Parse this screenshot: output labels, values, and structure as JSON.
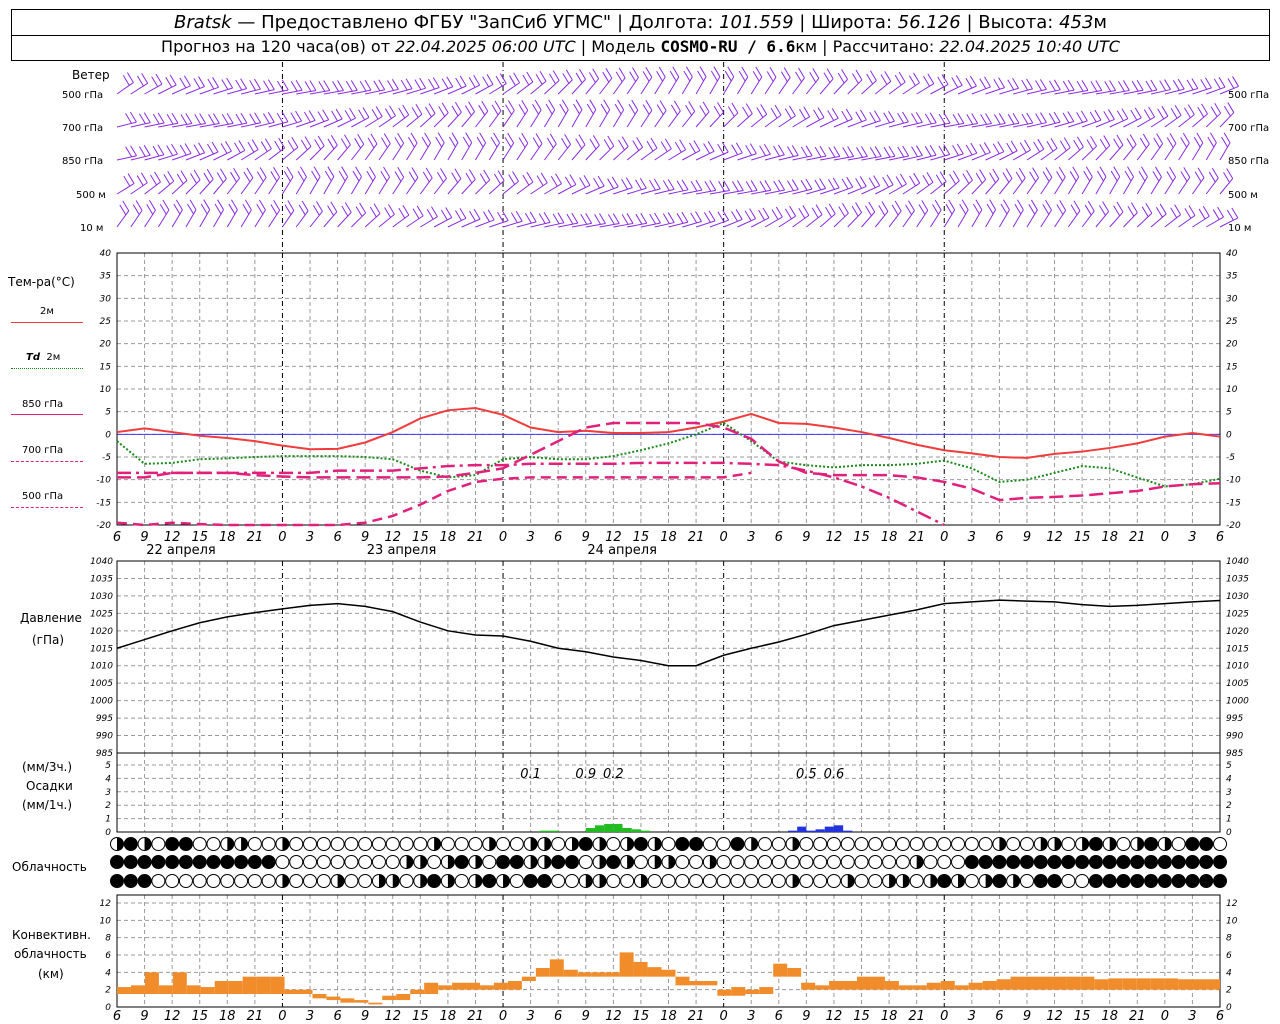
{
  "header": {
    "station": "Bratsk",
    "provided": "— Предоставлено ФГБУ \"ЗапСиб УГМС\"",
    "lon_label": "Долгота:",
    "lon": "101.559",
    "lat_label": "Широта:",
    "lat": "56.126",
    "alt_label": "Высота:",
    "alt": "453",
    "alt_unit": "м",
    "forecast_text": "Прогноз на 120 часа(ов) от",
    "forecast_from": "22.04.2025 06:00 UTC",
    "model_label": "Модель",
    "model": "COSMO-RU / 6.6",
    "model_unit": "км",
    "calc_label": "Рассчитано:",
    "calc_time": "22.04.2025 10:40 UTC"
  },
  "wind_panel": {
    "title": "Ветер",
    "levels": [
      "500 гПа",
      "700 гПа",
      "850 гПа",
      "500 м",
      "10  м"
    ]
  },
  "temp_panel": {
    "title": "Тем-ра(°C)",
    "legend": [
      {
        "label": "2м",
        "color": "#f03c3c",
        "style": "solid"
      },
      {
        "label_italic": "Td",
        "label": "2м",
        "color": "#1a8a1a",
        "style": "dotted"
      },
      {
        "label": "850 гПа",
        "color": "#e0207a",
        "style": "solid"
      },
      {
        "label": "700 гПа",
        "color": "#e0207a",
        "style": "dashdot"
      },
      {
        "label": "500 гПа",
        "color": "#e0207a",
        "style": "dashed"
      }
    ]
  },
  "pressure_panel": {
    "title": "Давление",
    "unit": "(гПа)"
  },
  "precip_panel": {
    "unit3": "(мм/3ч.)",
    "title": "Осадки",
    "unit1": "(мм/1ч.)"
  },
  "cloud_panel": {
    "title": "Облачность"
  },
  "conv_panel": {
    "title1": "Конвективн.",
    "title2": "облачность",
    "unit": "(км)"
  },
  "x_axis": {
    "hour_labels": [
      "6",
      "9",
      "12",
      "15",
      "18",
      "21",
      "0",
      "3",
      "6",
      "9",
      "12",
      "15",
      "18",
      "21",
      "0",
      "3",
      "6",
      "9",
      "12",
      "15",
      "18",
      "21",
      "0",
      "3",
      "6",
      "9",
      "12"
    ],
    "days": [
      "22 апреля",
      "23 апреля",
      "24 апреля"
    ]
  },
  "colors": {
    "wind": "#8a2be2",
    "t2m": "#f03c3c",
    "td": "#1a8a1a",
    "upper": "#e0207a",
    "pressure": "#000000",
    "precip_rain": "#22bb22",
    "precip_snow": "#2233dd",
    "conv": "#f08c2a",
    "grid": "#999999"
  },
  "chart_data": [
    {
      "type": "line",
      "title": "Тем-ра(°C)",
      "ylim": [
        -20,
        40
      ],
      "x_hours_from_start": [
        0,
        3,
        6,
        9,
        12,
        15,
        18,
        21,
        24,
        27,
        30,
        33,
        36,
        39,
        42,
        45,
        48,
        51,
        54,
        57,
        60,
        63,
        66,
        69,
        72,
        75,
        78,
        81,
        84,
        87,
        90,
        93,
        96,
        99,
        102,
        105,
        108,
        111,
        114,
        117,
        120
      ],
      "series": [
        {
          "name": "2м",
          "values": [
            0.5,
            1.3,
            0.5,
            -0.3,
            -0.8,
            -1.5,
            -2.5,
            -3.3,
            -3.2,
            -1.8,
            0.5,
            3.5,
            5.3,
            5.8,
            4.3,
            1.5,
            0.5,
            0.8,
            0.3,
            0.3,
            0.5,
            1.5,
            2.8,
            4.5,
            2.5,
            2.3,
            1.5,
            0.5,
            -0.8,
            -2.3,
            -3.5,
            -4.2,
            -5.0,
            -5.2,
            -4.3,
            -3.8,
            -3.0,
            -2.0,
            -0.5,
            0.3,
            -0.5
          ]
        },
        {
          "name": "Td 2м",
          "values": [
            -1.5,
            -6.5,
            -6.3,
            -5.5,
            -5.3,
            -5.0,
            -4.8,
            -4.8,
            -4.8,
            -5.0,
            -5.5,
            -8.0,
            -9.5,
            -9.0,
            -5.5,
            -5.0,
            -5.5,
            -5.5,
            -4.8,
            -3.5,
            -2.0,
            0.0,
            2.5,
            -1.5,
            -6.0,
            -6.8,
            -7.3,
            -6.8,
            -6.8,
            -6.5,
            -5.8,
            -7.5,
            -10.5,
            -10.0,
            -8.5,
            -7.0,
            -7.5,
            -9.5,
            -11.5,
            -11.0,
            -9.8
          ]
        },
        {
          "name": "850 гПа",
          "values": [
            -9.5,
            -9.5,
            -8.5,
            -8.5,
            -8.5,
            -9.0,
            -9.3,
            -9.5,
            -9.5,
            -9.5,
            -9.5,
            -9.5,
            -9.3,
            -8.5,
            -7.5,
            -4.5,
            -1.5,
            1.5,
            2.5,
            2.5,
            2.5,
            2.5,
            1.5,
            -1.0,
            -6.0,
            -8.5,
            -9.0,
            -9.0,
            -9.0,
            -9.5,
            -10.5,
            -12.0,
            -14.5,
            -14.0,
            -13.8,
            -13.5,
            -13.0,
            -12.5,
            -11.5,
            -11.0,
            -10.8
          ]
        },
        {
          "name": "700 гПа",
          "values": [
            -8.5,
            -8.5,
            -8.5,
            -8.5,
            -8.5,
            -8.5,
            -8.5,
            -8.5,
            -8.0,
            -8.0,
            -8.0,
            -7.5,
            -7.0,
            -6.8,
            -6.8,
            -6.5,
            -6.5,
            -6.5,
            -6.5,
            -6.3,
            -6.3,
            -6.3,
            -6.3,
            -6.5,
            -6.8,
            -8.0,
            -9.5,
            -11.5,
            -14.0,
            -17.0,
            -20.0
          ]
        },
        {
          "name": "500 гПа",
          "values": [
            -19.5,
            -20.0,
            -19.5,
            -19.8,
            -20.0,
            -20.3,
            -20.5,
            -20.3,
            -20.0,
            -19.5,
            -18.0,
            -15.5,
            -12.5,
            -10.5,
            -9.8,
            -9.5,
            -9.5,
            -9.5,
            -9.5,
            -9.5,
            -9.5,
            -9.5,
            -9.5,
            -8.5
          ]
        }
      ]
    },
    {
      "type": "line",
      "title": "Давление",
      "ylim": [
        985,
        1040
      ],
      "x_hours_from_start": [
        0,
        3,
        6,
        9,
        12,
        15,
        18,
        21,
        24,
        27,
        30,
        33,
        36,
        39,
        42,
        45,
        48,
        51,
        54,
        57,
        60,
        63,
        66,
        69,
        72,
        75,
        78,
        81,
        84,
        87,
        90,
        93,
        96,
        99,
        102,
        105,
        108,
        111,
        114,
        117,
        120
      ],
      "series": [
        {
          "name": "Давление",
          "values": [
            1015.0,
            1017.5,
            1020.0,
            1022.3,
            1024.0,
            1025.2,
            1026.3,
            1027.3,
            1027.8,
            1027.0,
            1025.5,
            1022.5,
            1020.0,
            1018.8,
            1018.5,
            1017.0,
            1015.0,
            1014.0,
            1012.5,
            1011.5,
            1010.0,
            1010.0,
            1013.0,
            1015.0,
            1016.8,
            1019.0,
            1021.5,
            1023.0,
            1024.5,
            1026.0,
            1027.8,
            1028.3,
            1028.8,
            1028.5,
            1028.3,
            1027.5,
            1027.0,
            1027.3,
            1027.8,
            1028.3,
            1028.7
          ]
        }
      ]
    },
    {
      "type": "bar",
      "title": "Осадки",
      "ylim": [
        0,
        5
      ],
      "annotations": [
        {
          "x_hour": 45,
          "text": "0.1"
        },
        {
          "x_hour": 51,
          "text": "0.9"
        },
        {
          "x_hour": 54,
          "text": "0.2"
        },
        {
          "x_hour": 75,
          "text": "0.5"
        },
        {
          "x_hour": 78,
          "text": "0.6"
        }
      ],
      "series": [
        {
          "name": "rain",
          "x_hour": [
            46,
            47,
            51,
            52,
            53,
            54,
            55,
            56,
            57
          ],
          "values": [
            0.1,
            0.1,
            0.3,
            0.5,
            0.6,
            0.6,
            0.3,
            0.2,
            0.1
          ]
        },
        {
          "name": "snow",
          "x_hour": [
            73,
            74,
            75,
            76,
            77,
            78,
            79
          ],
          "values": [
            0.1,
            0.4,
            0.1,
            0.2,
            0.4,
            0.5,
            0.1
          ]
        }
      ]
    },
    {
      "type": "bar",
      "title": "Конвективн. облачность",
      "ylim": [
        0,
        12
      ],
      "bars_base_top_km": [
        [
          0,
          1.5,
          2.3
        ],
        [
          1,
          1.5,
          2.5
        ],
        [
          2,
          1.5,
          4
        ],
        [
          3,
          1.5,
          2.5
        ],
        [
          4,
          1.5,
          4
        ],
        [
          5,
          1.5,
          2.5
        ],
        [
          6,
          1.5,
          2.3
        ],
        [
          7,
          1.5,
          3
        ],
        [
          8,
          1.5,
          3
        ],
        [
          9,
          1.5,
          3.5
        ],
        [
          10,
          1.5,
          3.5
        ],
        [
          11,
          1.5,
          3.5
        ],
        [
          12,
          1.5,
          2
        ],
        [
          13,
          1.5,
          2
        ],
        [
          14,
          1.0,
          1.5
        ],
        [
          15,
          0.8,
          1.2
        ],
        [
          16,
          0.5,
          1.0
        ],
        [
          17,
          0.5,
          0.8
        ],
        [
          18,
          0.3,
          0.5
        ],
        [
          19,
          0.8,
          1.3
        ],
        [
          20,
          0.8,
          1.5
        ],
        [
          21,
          1.5,
          2
        ],
        [
          22,
          1.5,
          2.8
        ],
        [
          23,
          2,
          2.5
        ],
        [
          24,
          2,
          2.8
        ],
        [
          25,
          2,
          2.8
        ],
        [
          26,
          2,
          2.5
        ],
        [
          27,
          2,
          2.8
        ],
        [
          28,
          2,
          3
        ],
        [
          29,
          3,
          3.5
        ],
        [
          30,
          3.5,
          4.5
        ],
        [
          31,
          3.5,
          5.5
        ],
        [
          32,
          3.5,
          4.3
        ],
        [
          33,
          3.5,
          4
        ],
        [
          34,
          3.5,
          4
        ],
        [
          35,
          3.5,
          4
        ],
        [
          36,
          3.5,
          6.3
        ],
        [
          37,
          3.5,
          5.2
        ],
        [
          38,
          3.5,
          4.6
        ],
        [
          39,
          3.5,
          4.3
        ],
        [
          40,
          2.5,
          3.5
        ],
        [
          41,
          2.5,
          3
        ],
        [
          42,
          2.5,
          3
        ],
        [
          43,
          1.3,
          2
        ],
        [
          44,
          1.3,
          2.3
        ],
        [
          45,
          1.5,
          2
        ],
        [
          46,
          1.5,
          2.3
        ],
        [
          47,
          3.5,
          5
        ],
        [
          48,
          3.5,
          4.5
        ],
        [
          49,
          2,
          2.8
        ],
        [
          50,
          2,
          2.5
        ],
        [
          51,
          2,
          3
        ],
        [
          52,
          2,
          3
        ],
        [
          53,
          2,
          3.5
        ],
        [
          54,
          2,
          3.5
        ],
        [
          55,
          2,
          3
        ],
        [
          56,
          2,
          2.5
        ],
        [
          57,
          2,
          2.5
        ],
        [
          58,
          2,
          2.8
        ],
        [
          59,
          2,
          3
        ],
        [
          60,
          2,
          2.5
        ],
        [
          61,
          2,
          2.8
        ],
        [
          62,
          2,
          3
        ],
        [
          63,
          2,
          3.2
        ],
        [
          64,
          2,
          3.5
        ],
        [
          65,
          2,
          3.5
        ],
        [
          66,
          2,
          3.5
        ],
        [
          67,
          2,
          3.5
        ],
        [
          68,
          2,
          3.5
        ],
        [
          69,
          2,
          3.5
        ],
        [
          70,
          2,
          3.2
        ],
        [
          71,
          2,
          3.3
        ],
        [
          72,
          2,
          3.3
        ],
        [
          73,
          2,
          3.3
        ],
        [
          74,
          2,
          3.3
        ],
        [
          75,
          2,
          3.3
        ],
        [
          76,
          2,
          3.2
        ],
        [
          77,
          2,
          3.2
        ],
        [
          78,
          2,
          3.2
        ]
      ]
    }
  ]
}
